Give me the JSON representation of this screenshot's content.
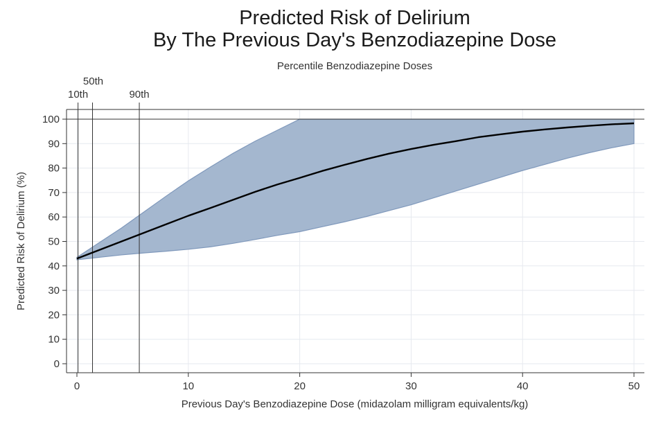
{
  "chart_data": {
    "type": "line",
    "title": [
      "Predicted Risk of Delirium",
      "By The Previous Day's Benzodiazepine Dose"
    ],
    "subtitle": "Percentile Benzodiazepine Doses",
    "xlabel": "Previous Day's Benzodiazepine Dose (midazolam milligram equivalents/kg)",
    "ylabel": "Predicted Risk of Delirium (%)",
    "xlim": [
      0,
      50
    ],
    "ylim": [
      0,
      100
    ],
    "xticks": [
      0,
      10,
      20,
      30,
      40,
      50
    ],
    "yticks": [
      0,
      10,
      20,
      30,
      40,
      50,
      60,
      70,
      80,
      90,
      100
    ],
    "grid": true,
    "reference_line_y": 100,
    "percentile_lines": [
      {
        "label": "10th",
        "x": 0.1
      },
      {
        "label": "50th",
        "x": 1.4
      },
      {
        "label": "90th",
        "x": 5.6
      }
    ],
    "series": [
      {
        "x": [
          0,
          2,
          4,
          6,
          8,
          10,
          12,
          14,
          16,
          18,
          20,
          22,
          24,
          26,
          28,
          30,
          32,
          34,
          36,
          38,
          40,
          42,
          44,
          46,
          48,
          50
        ],
        "values": [
          43,
          46.5,
          50,
          53.5,
          57,
          60.5,
          63.7,
          67,
          70.3,
          73.3,
          76,
          78.8,
          81.3,
          83.7,
          85.9,
          87.8,
          89.5,
          91,
          92.6,
          93.8,
          94.9,
          95.8,
          96.6,
          97.3,
          97.9,
          98.3
        ],
        "ci_lower": [
          42.5,
          43.5,
          44.5,
          45.3,
          46,
          46.8,
          47.8,
          49.2,
          50.8,
          52.5,
          54,
          56,
          58,
          60.2,
          62.6,
          65,
          67.8,
          70.6,
          73.4,
          76.2,
          79,
          81.5,
          84,
          86.3,
          88.3,
          90
        ],
        "ci_upper": [
          43.5,
          49.5,
          55.5,
          62,
          68.5,
          74.8,
          80.5,
          86,
          91,
          95.5,
          100,
          100,
          100,
          100,
          100,
          100,
          100,
          100,
          100,
          100,
          100,
          100,
          100,
          100,
          100,
          100
        ]
      }
    ]
  },
  "colors": {
    "ci_fill": "#a4b7cf",
    "ci_edge": "#7f98bb",
    "line": "#000000",
    "grid": "#e6e9ef",
    "axis": "#333333"
  }
}
